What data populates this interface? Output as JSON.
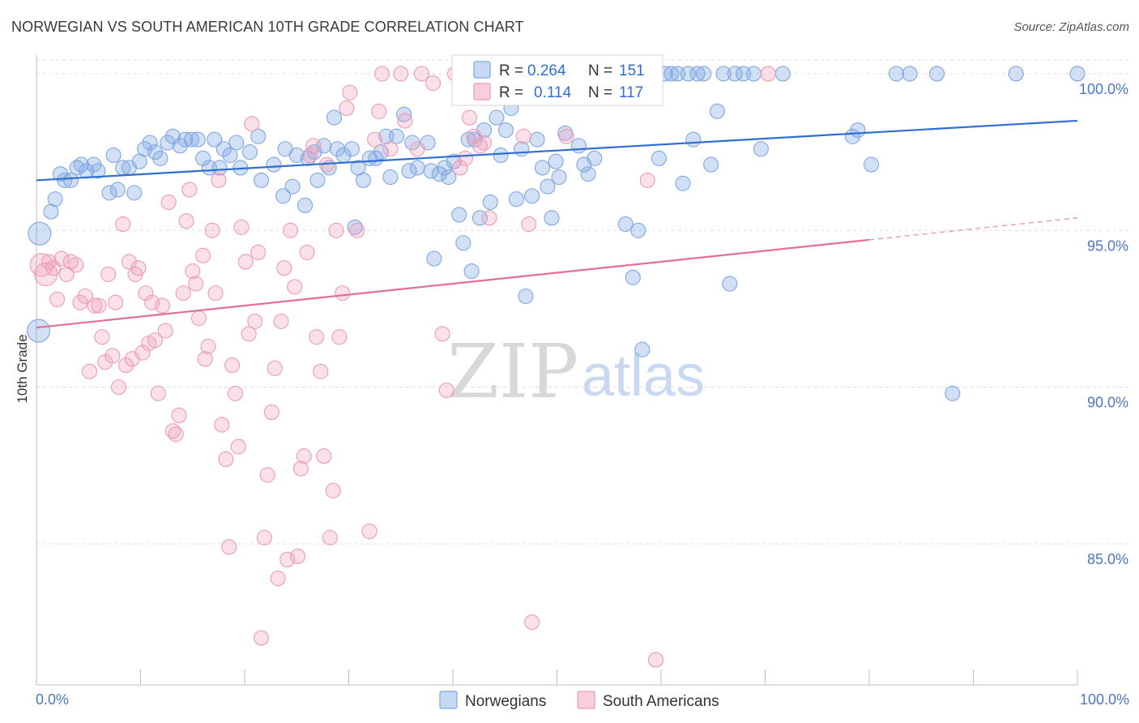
{
  "header": {
    "title": "NORWEGIAN VS SOUTH AMERICAN 10TH GRADE CORRELATION CHART",
    "source": "Source: ZipAtlas.com"
  },
  "watermark": {
    "zip": "ZIP",
    "atlas": "atlas"
  },
  "legend": {
    "r_label": "R =",
    "n_label": "N =",
    "rows": [
      {
        "r": "0.264",
        "n": "151",
        "color": "#7fa7e2"
      },
      {
        "r": "0.114",
        "n": "117",
        "color": "#ee9bb5"
      }
    ]
  },
  "chart_data": {
    "type": "scatter",
    "title": "NORWEGIAN VS SOUTH AMERICAN 10TH GRADE CORRELATION CHART",
    "xlabel": "",
    "ylabel": "10th Grade",
    "xlim": [
      0,
      100
    ],
    "ylim": [
      80.5,
      100.8
    ],
    "x_tick_labels": [
      "0.0%",
      "100.0%"
    ],
    "y_ticks": [
      85,
      90,
      95,
      100
    ],
    "y_tick_labels": [
      "85.0%",
      "90.0%",
      "95.0%",
      "100.0%"
    ],
    "grid": true,
    "legend_placement": "top-center",
    "series": [
      {
        "name": "Norwegians",
        "color": "#7fa7e2",
        "r": 0.264,
        "n": 151,
        "trend": {
          "x": [
            0,
            100
          ],
          "y": [
            96.6,
            98.5
          ]
        },
        "points": [
          [
            0.3,
            94.9
          ],
          [
            0.2,
            91.8
          ],
          [
            1.4,
            95.6
          ],
          [
            1.8,
            96.0
          ],
          [
            2.3,
            96.8
          ],
          [
            2.7,
            96.6
          ],
          [
            3.3,
            96.6
          ],
          [
            3.9,
            97.0
          ],
          [
            4.3,
            97.1
          ],
          [
            4.8,
            96.9
          ],
          [
            5.5,
            97.1
          ],
          [
            5.9,
            96.9
          ],
          [
            7.0,
            96.2
          ],
          [
            7.4,
            97.4
          ],
          [
            7.8,
            96.3
          ],
          [
            8.3,
            97.0
          ],
          [
            8.9,
            97.0
          ],
          [
            9.4,
            96.2
          ],
          [
            9.9,
            97.2
          ],
          [
            10.4,
            97.6
          ],
          [
            10.9,
            97.8
          ],
          [
            11.4,
            97.5
          ],
          [
            11.9,
            97.3
          ],
          [
            12.6,
            97.8
          ],
          [
            13.1,
            98.0
          ],
          [
            13.8,
            97.7
          ],
          [
            14.3,
            97.9
          ],
          [
            14.9,
            97.9
          ],
          [
            15.5,
            97.9
          ],
          [
            16.0,
            97.3
          ],
          [
            16.6,
            97.0
          ],
          [
            17.1,
            97.9
          ],
          [
            17.6,
            97.0
          ],
          [
            18.0,
            97.6
          ],
          [
            18.6,
            97.4
          ],
          [
            19.2,
            97.8
          ],
          [
            19.6,
            97.0
          ],
          [
            20.5,
            97.5
          ],
          [
            21.3,
            98.0
          ],
          [
            21.6,
            96.6
          ],
          [
            22.8,
            97.1
          ],
          [
            23.7,
            96.1
          ],
          [
            23.9,
            97.6
          ],
          [
            24.6,
            96.4
          ],
          [
            25.0,
            97.4
          ],
          [
            25.8,
            95.8
          ],
          [
            26.1,
            97.3
          ],
          [
            26.7,
            97.5
          ],
          [
            27.0,
            96.6
          ],
          [
            27.6,
            97.7
          ],
          [
            28.1,
            97.0
          ],
          [
            28.6,
            98.6
          ],
          [
            28.9,
            97.6
          ],
          [
            29.5,
            97.4
          ],
          [
            30.3,
            97.6
          ],
          [
            30.6,
            95.1
          ],
          [
            30.9,
            97.0
          ],
          [
            31.4,
            96.6
          ],
          [
            32.0,
            97.3
          ],
          [
            32.6,
            97.3
          ],
          [
            33.1,
            97.5
          ],
          [
            33.6,
            98.0
          ],
          [
            34.0,
            96.7
          ],
          [
            34.6,
            98.0
          ],
          [
            35.3,
            98.7
          ],
          [
            35.8,
            96.9
          ],
          [
            36.1,
            97.8
          ],
          [
            36.6,
            97.0
          ],
          [
            37.6,
            97.8
          ],
          [
            37.9,
            96.9
          ],
          [
            38.2,
            94.1
          ],
          [
            38.7,
            96.8
          ],
          [
            39.2,
            97.0
          ],
          [
            39.6,
            96.7
          ],
          [
            40.1,
            97.2
          ],
          [
            40.6,
            95.5
          ],
          [
            41.0,
            94.6
          ],
          [
            41.5,
            97.9
          ],
          [
            41.8,
            93.7
          ],
          [
            42.1,
            97.9
          ],
          [
            42.6,
            95.4
          ],
          [
            43.0,
            98.2
          ],
          [
            43.6,
            95.9
          ],
          [
            44.2,
            98.6
          ],
          [
            44.6,
            97.4
          ],
          [
            45.1,
            98.2
          ],
          [
            45.6,
            98.9
          ],
          [
            46.1,
            96.0
          ],
          [
            46.6,
            97.6
          ],
          [
            47.0,
            92.9
          ],
          [
            47.6,
            96.1
          ],
          [
            48.1,
            97.9
          ],
          [
            48.6,
            97.0
          ],
          [
            49.1,
            96.4
          ],
          [
            49.5,
            95.4
          ],
          [
            49.9,
            97.2
          ],
          [
            50.2,
            96.7
          ],
          [
            50.8,
            98.1
          ],
          [
            51.5,
            99.6
          ],
          [
            52.1,
            97.7
          ],
          [
            52.6,
            97.1
          ],
          [
            53.0,
            96.8
          ],
          [
            53.6,
            97.3
          ],
          [
            54.2,
            99.3
          ],
          [
            55.3,
            100.0
          ],
          [
            56.6,
            95.2
          ],
          [
            57.3,
            93.5
          ],
          [
            57.8,
            95.0
          ],
          [
            58.2,
            91.2
          ],
          [
            58.7,
            100.0
          ],
          [
            59.2,
            100.0
          ],
          [
            59.8,
            97.3
          ],
          [
            60.4,
            100.0
          ],
          [
            61.0,
            100.0
          ],
          [
            61.6,
            100.0
          ],
          [
            62.1,
            96.5
          ],
          [
            62.6,
            100.0
          ],
          [
            63.1,
            97.9
          ],
          [
            63.5,
            100.0
          ],
          [
            64.1,
            100.0
          ],
          [
            64.8,
            97.1
          ],
          [
            65.4,
            98.8
          ],
          [
            66.0,
            100.0
          ],
          [
            66.6,
            93.3
          ],
          [
            67.1,
            100.0
          ],
          [
            67.9,
            100.0
          ],
          [
            68.9,
            100.0
          ],
          [
            69.6,
            97.6
          ],
          [
            71.7,
            100.0
          ],
          [
            78.4,
            98.0
          ],
          [
            78.9,
            98.2
          ],
          [
            80.2,
            97.1
          ],
          [
            82.6,
            100.0
          ],
          [
            83.9,
            100.0
          ],
          [
            86.5,
            100.0
          ],
          [
            88.0,
            89.8
          ],
          [
            94.1,
            100.0
          ],
          [
            100.0,
            100.0
          ]
        ]
      },
      {
        "name": "South Americans",
        "color": "#ee9bb5",
        "r": 0.114,
        "n": 117,
        "trend": {
          "x": [
            0,
            100
          ],
          "y": [
            91.9,
            95.4
          ]
        },
        "dashed_from_x": 80,
        "points": [
          [
            0.5,
            93.9
          ],
          [
            0.9,
            93.6
          ],
          [
            1.2,
            94.0
          ],
          [
            1.6,
            93.8
          ],
          [
            2.0,
            92.8
          ],
          [
            2.4,
            94.1
          ],
          [
            2.9,
            93.6
          ],
          [
            3.3,
            94.0
          ],
          [
            3.8,
            93.9
          ],
          [
            4.2,
            92.7
          ],
          [
            4.7,
            92.9
          ],
          [
            5.1,
            90.5
          ],
          [
            5.6,
            92.6
          ],
          [
            6.0,
            92.6
          ],
          [
            6.3,
            91.6
          ],
          [
            6.6,
            90.8
          ],
          [
            6.9,
            93.6
          ],
          [
            7.3,
            91.0
          ],
          [
            7.6,
            92.7
          ],
          [
            7.9,
            90.0
          ],
          [
            8.3,
            95.2
          ],
          [
            8.6,
            90.7
          ],
          [
            8.9,
            94.0
          ],
          [
            9.2,
            90.9
          ],
          [
            9.5,
            93.6
          ],
          [
            9.8,
            93.8
          ],
          [
            10.2,
            91.1
          ],
          [
            10.5,
            93.0
          ],
          [
            10.8,
            91.4
          ],
          [
            11.1,
            92.7
          ],
          [
            11.4,
            91.5
          ],
          [
            11.7,
            89.8
          ],
          [
            12.1,
            92.6
          ],
          [
            12.4,
            91.8
          ],
          [
            12.7,
            95.9
          ],
          [
            13.1,
            88.6
          ],
          [
            13.4,
            88.5
          ],
          [
            13.7,
            89.1
          ],
          [
            14.1,
            93.0
          ],
          [
            14.4,
            95.3
          ],
          [
            14.7,
            96.3
          ],
          [
            15.0,
            93.7
          ],
          [
            15.3,
            93.3
          ],
          [
            15.6,
            92.2
          ],
          [
            16.0,
            94.2
          ],
          [
            16.2,
            90.9
          ],
          [
            16.5,
            91.3
          ],
          [
            16.9,
            95.0
          ],
          [
            17.2,
            93.0
          ],
          [
            17.5,
            96.6
          ],
          [
            17.8,
            88.8
          ],
          [
            18.2,
            87.7
          ],
          [
            18.5,
            84.9
          ],
          [
            18.8,
            90.7
          ],
          [
            19.1,
            89.8
          ],
          [
            19.4,
            88.1
          ],
          [
            19.7,
            95.1
          ],
          [
            20.1,
            94.0
          ],
          [
            20.4,
            91.7
          ],
          [
            20.7,
            98.4
          ],
          [
            21.0,
            92.1
          ],
          [
            21.3,
            94.3
          ],
          [
            21.6,
            82.0
          ],
          [
            21.9,
            85.2
          ],
          [
            22.2,
            87.2
          ],
          [
            22.6,
            89.2
          ],
          [
            22.9,
            90.6
          ],
          [
            23.2,
            83.9
          ],
          [
            23.5,
            92.1
          ],
          [
            23.8,
            93.8
          ],
          [
            24.1,
            84.5
          ],
          [
            24.4,
            95.0
          ],
          [
            24.8,
            93.2
          ],
          [
            25.1,
            84.6
          ],
          [
            25.4,
            87.4
          ],
          [
            25.7,
            87.8
          ],
          [
            26.0,
            94.3
          ],
          [
            26.3,
            97.4
          ],
          [
            26.6,
            97.7
          ],
          [
            26.9,
            91.6
          ],
          [
            27.3,
            90.5
          ],
          [
            27.6,
            87.8
          ],
          [
            27.9,
            97.1
          ],
          [
            28.2,
            85.2
          ],
          [
            28.5,
            86.7
          ],
          [
            28.8,
            95.0
          ],
          [
            29.1,
            91.6
          ],
          [
            29.4,
            93.0
          ],
          [
            29.8,
            98.9
          ],
          [
            30.1,
            99.4
          ],
          [
            30.8,
            95.0
          ],
          [
            32.0,
            85.4
          ],
          [
            32.5,
            97.9
          ],
          [
            32.9,
            98.8
          ],
          [
            33.2,
            100.0
          ],
          [
            34.0,
            97.6
          ],
          [
            35.0,
            100.0
          ],
          [
            35.4,
            98.5
          ],
          [
            36.6,
            97.6
          ],
          [
            37.0,
            100.0
          ],
          [
            38.1,
            99.7
          ],
          [
            39.0,
            91.7
          ],
          [
            39.4,
            89.9
          ],
          [
            40.2,
            100.0
          ],
          [
            40.7,
            97.0
          ],
          [
            41.2,
            97.3
          ],
          [
            41.6,
            98.6
          ],
          [
            42.0,
            98.0
          ],
          [
            42.6,
            97.7
          ],
          [
            43.0,
            97.8
          ],
          [
            43.5,
            95.4
          ],
          [
            46.8,
            98.0
          ],
          [
            47.3,
            95.2
          ],
          [
            50.9,
            98.0
          ],
          [
            58.7,
            96.6
          ],
          [
            49.5,
            100.0
          ],
          [
            50.3,
            99.5
          ],
          [
            49.0,
            99.4
          ],
          [
            47.6,
            82.5
          ],
          [
            59.5,
            81.3
          ],
          [
            70.3,
            100.0
          ]
        ]
      }
    ]
  }
}
